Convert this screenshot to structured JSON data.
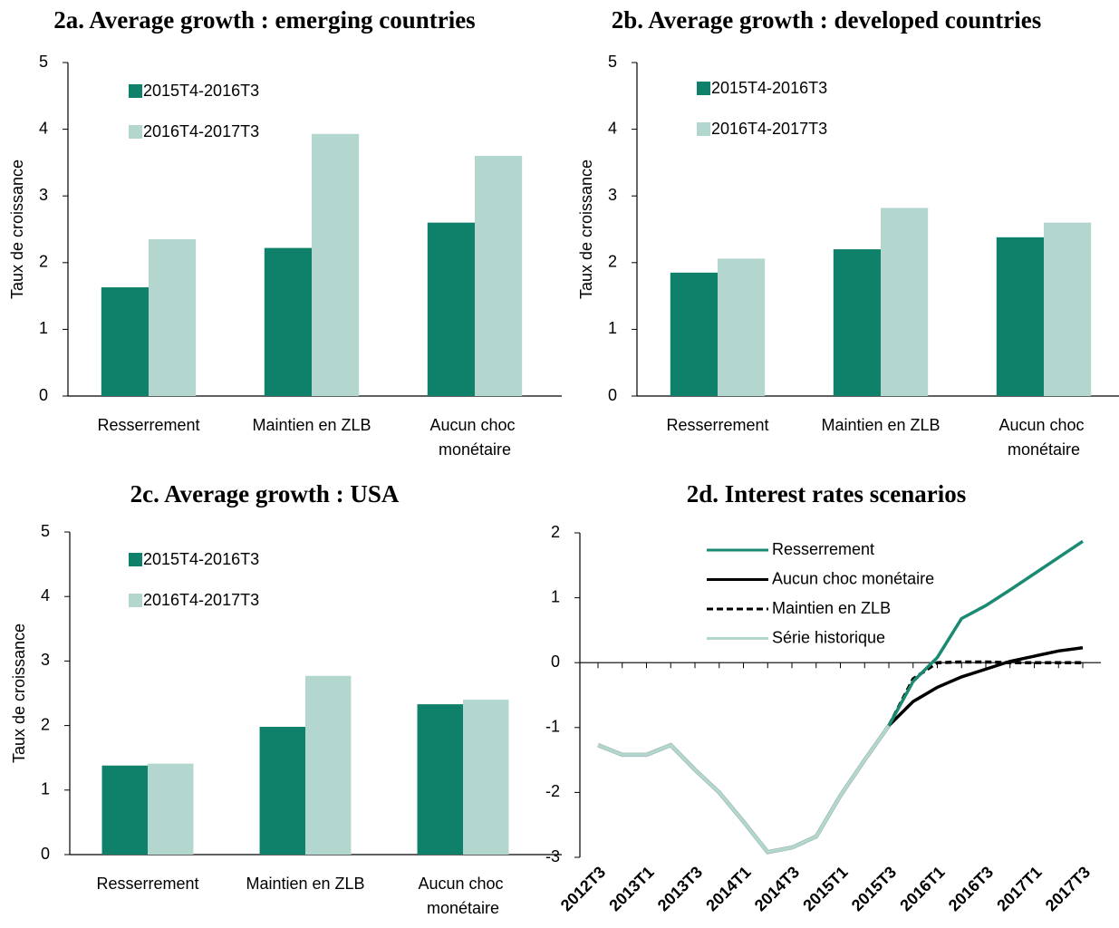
{
  "chart_data": [
    {
      "type": "bar",
      "title": "2a. Average growth : emerging countries",
      "y_label": "Taux de croissance",
      "categories": [
        "Resserrement",
        "Maintien en ZLB",
        "Aucun choc monétaire"
      ],
      "series": [
        {
          "name": "2015T4-2016T3",
          "color": "#0f8069",
          "values": [
            1.63,
            2.22,
            2.6
          ]
        },
        {
          "name": "2016T4-2017T3",
          "color": "#b3d7cf",
          "values": [
            2.35,
            3.93,
            3.6
          ]
        }
      ],
      "ylim": [
        0,
        5
      ],
      "yticks": [
        0,
        1,
        2,
        3,
        4,
        5
      ]
    },
    {
      "type": "bar",
      "title": "2b. Average growth : developed countries",
      "y_label": "Taux de croissance",
      "categories": [
        "Resserrement",
        "Maintien en ZLB",
        "Aucun choc monétaire"
      ],
      "series": [
        {
          "name": "2015T4-2016T3",
          "color": "#0f8069",
          "values": [
            1.85,
            2.2,
            2.38
          ]
        },
        {
          "name": "2016T4-2017T3",
          "color": "#b3d7cf",
          "values": [
            2.06,
            2.82,
            2.6
          ]
        }
      ],
      "ylim": [
        0,
        5
      ],
      "yticks": [
        0,
        1,
        2,
        3,
        4,
        5
      ]
    },
    {
      "type": "bar",
      "title": "2c. Average growth : USA",
      "y_label": "Taux de croissance",
      "categories": [
        "Resserrement",
        "Maintien en ZLB",
        "Aucun choc monétaire"
      ],
      "series": [
        {
          "name": "2015T4-2016T3",
          "color": "#0f8069",
          "values": [
            1.38,
            1.98,
            2.33
          ]
        },
        {
          "name": "2016T4-2017T3",
          "color": "#b3d7cf",
          "values": [
            1.41,
            2.77,
            2.4
          ]
        }
      ],
      "ylim": [
        0,
        5
      ],
      "yticks": [
        0,
        1,
        2,
        3,
        4,
        5
      ]
    },
    {
      "type": "line",
      "title": "2d. Interest rates scenarios",
      "categories": [
        "2012T3",
        null,
        "2013T1",
        null,
        "2013T3",
        null,
        "2014T1",
        null,
        "2014T3",
        null,
        "2015T1",
        null,
        "2015T3",
        null,
        "2016T1",
        null,
        "2016T3",
        null,
        "2017T1",
        null,
        "2017T3"
      ],
      "series": [
        {
          "name": "Resserrement",
          "color": "#1a8a72",
          "dashed": false,
          "values": [
            null,
            null,
            null,
            null,
            null,
            null,
            null,
            null,
            null,
            null,
            null,
            null,
            -0.97,
            -0.29,
            0.08,
            0.68,
            0.88,
            1.12,
            1.37,
            1.62,
            1.87
          ]
        },
        {
          "name": "Aucun choc monétaire",
          "color": "#000000",
          "dashed": false,
          "values": [
            null,
            null,
            null,
            null,
            null,
            null,
            null,
            null,
            null,
            null,
            null,
            null,
            -0.97,
            -0.6,
            -0.38,
            -0.22,
            -0.1,
            0.02,
            0.1,
            0.18,
            0.23
          ]
        },
        {
          "name": "Maintien en ZLB",
          "color": "#000000",
          "dashed": true,
          "values": [
            null,
            null,
            null,
            null,
            null,
            null,
            null,
            null,
            null,
            null,
            null,
            null,
            -0.97,
            -0.25,
            0.0,
            0.01,
            0.01,
            0.0,
            0.0,
            0.0,
            0.0
          ]
        },
        {
          "name": "Série historique",
          "color": "#b3d7cf",
          "dashed": false,
          "values": [
            -1.27,
            -1.42,
            -1.42,
            -1.27,
            -1.65,
            -2.0,
            -2.45,
            -2.92,
            -2.85,
            -2.68,
            -2.05,
            -1.5,
            -0.97,
            null,
            null,
            null,
            null,
            null,
            null,
            null,
            null
          ]
        }
      ],
      "ylim": [
        -3,
        2
      ],
      "yticks": [
        -3,
        -2,
        -1,
        0,
        1,
        2
      ]
    }
  ]
}
